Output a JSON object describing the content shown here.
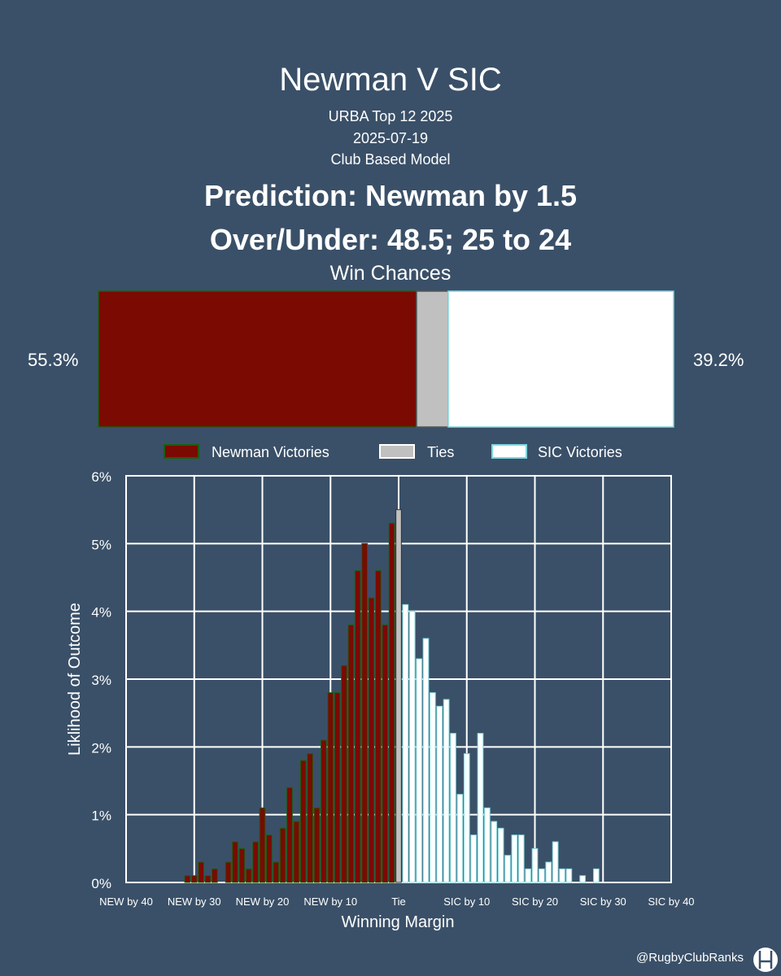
{
  "header": {
    "title": "Newman V SIC",
    "competition": "URBA Top 12 2025",
    "date": "2025-07-19",
    "model": "Club Based Model",
    "prediction": "Prediction: Newman by 1.5",
    "over_under": "Over/Under: 48.5; 25 to 24"
  },
  "win_chances": {
    "title": "Win Chances",
    "home_pct_label": "55.3%",
    "away_pct_label": "39.2%",
    "home_value": 55.3,
    "tie_value": 5.5,
    "away_value": 39.2,
    "colors": {
      "home": "#7b0a02",
      "home_edge": "#1c5e12",
      "tie": "#c0c0c0",
      "away": "#ffffff",
      "away_edge": "#7fd6dd"
    }
  },
  "legend": {
    "home": "Newman Victories",
    "tie": "Ties",
    "away": "SIC Victories"
  },
  "chart_data": {
    "type": "bar",
    "xlabel": "Winning Margin",
    "ylabel": "Liklihood of Outcome",
    "xlim": [
      -40,
      40
    ],
    "ylim": [
      0,
      6
    ],
    "x_ticks": [
      {
        "value": -40,
        "label": "NEW by 40"
      },
      {
        "value": -30,
        "label": "NEW by 30"
      },
      {
        "value": -20,
        "label": "NEW by 20"
      },
      {
        "value": -10,
        "label": "NEW by 10"
      },
      {
        "value": 0,
        "label": "Tie"
      },
      {
        "value": 10,
        "label": "SIC by 10"
      },
      {
        "value": 20,
        "label": "SIC by 20"
      },
      {
        "value": 30,
        "label": "SIC by 30"
      },
      {
        "value": 40,
        "label": "SIC by 40"
      }
    ],
    "y_ticks": [
      {
        "value": 0,
        "label": "0%"
      },
      {
        "value": 1,
        "label": "1%"
      },
      {
        "value": 2,
        "label": "2%"
      },
      {
        "value": 3,
        "label": "3%"
      },
      {
        "value": 4,
        "label": "4%"
      },
      {
        "value": 5,
        "label": "5%"
      },
      {
        "value": 6,
        "label": "6%"
      }
    ],
    "grid": true,
    "series": [
      {
        "name": "Newman Victories",
        "x": [
          -31,
          -30,
          -29,
          -28,
          -27,
          -26,
          -25,
          -24,
          -23,
          -22,
          -21,
          -20,
          -19,
          -18,
          -17,
          -16,
          -15,
          -14,
          -13,
          -12,
          -11,
          -10,
          -9,
          -8,
          -7,
          -6,
          -5,
          -4,
          -3,
          -2,
          -1
        ],
        "values": [
          0.1,
          0.1,
          0.3,
          0.1,
          0.2,
          0.0,
          0.3,
          0.6,
          0.5,
          0.2,
          0.6,
          1.1,
          0.7,
          0.3,
          0.8,
          1.4,
          0.9,
          1.8,
          1.9,
          1.1,
          2.1,
          2.8,
          2.8,
          3.2,
          3.8,
          4.6,
          5.0,
          4.2,
          4.6,
          3.8,
          5.3
        ]
      },
      {
        "name": "Ties",
        "x": [
          0
        ],
        "values": [
          5.5
        ]
      },
      {
        "name": "SIC Victories",
        "x": [
          1,
          2,
          3,
          4,
          5,
          6,
          7,
          8,
          9,
          10,
          11,
          12,
          13,
          14,
          15,
          16,
          17,
          18,
          19,
          20,
          21,
          22,
          23,
          24,
          25,
          26,
          27,
          28,
          29,
          30
        ],
        "values": [
          4.1,
          4.0,
          3.3,
          3.6,
          2.8,
          2.6,
          2.7,
          2.2,
          1.3,
          1.9,
          0.7,
          2.2,
          1.1,
          0.9,
          0.8,
          0.4,
          0.7,
          0.7,
          0.2,
          0.5,
          0.2,
          0.3,
          0.6,
          0.2,
          0.2,
          0.0,
          0.1,
          0.0,
          0.2,
          0.0
        ]
      }
    ]
  },
  "footer": {
    "handle": "@RugbyClubRanks",
    "logo_icon": "rugby-posts-icon"
  }
}
